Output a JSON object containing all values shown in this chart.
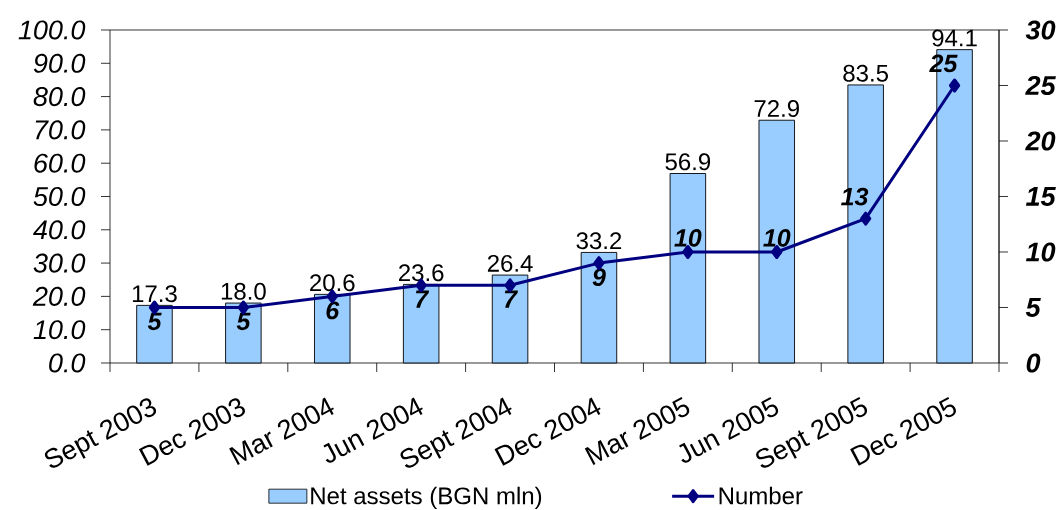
{
  "chart_data": {
    "type": "bar",
    "categories": [
      "Sept 2003",
      "Dec 2003",
      "Mar 2004",
      "Jun 2004",
      "Sept 2004",
      "Dec 2004",
      "Mar 2005",
      "Jun 2005",
      "Sept 2005",
      "Dec 2005"
    ],
    "series": [
      {
        "name": "Net assets (BGN mln)",
        "color": "#99ccff",
        "values": [
          17.3,
          18.0,
          20.6,
          23.6,
          26.4,
          33.2,
          56.9,
          72.9,
          83.5,
          94.1
        ],
        "value_labels": [
          "17.3",
          "18.0",
          "20.6",
          "23.6",
          "26.4",
          "33.2",
          "56.9",
          "72.9",
          "83.5",
          "94.1"
        ]
      },
      {
        "name": "Number",
        "type": "line",
        "axis": "y2",
        "color": "#000080",
        "marker": "diamond",
        "values": [
          5,
          5,
          6,
          7,
          7,
          9,
          10,
          10,
          13,
          25
        ],
        "value_labels": [
          "5",
          "5",
          "6",
          "7",
          "7",
          "9",
          "10",
          "10",
          "13",
          "25"
        ]
      }
    ],
    "ylim": [
      0,
      100
    ],
    "yticks": [
      {
        "value": 0,
        "label": "0.0"
      },
      {
        "value": 10,
        "label": "10.0"
      },
      {
        "value": 20,
        "label": "20.0"
      },
      {
        "value": 30,
        "label": "30.0"
      },
      {
        "value": 40,
        "label": "40.0"
      },
      {
        "value": 50,
        "label": "50.0"
      },
      {
        "value": 60,
        "label": "60.0"
      },
      {
        "value": 70,
        "label": "70.0"
      },
      {
        "value": 80,
        "label": "80.0"
      },
      {
        "value": 90,
        "label": "90.0"
      },
      {
        "value": 100,
        "label": "100.0"
      }
    ],
    "y2lim": [
      0,
      30
    ],
    "y2ticks": [
      0,
      5,
      10,
      15,
      20,
      25,
      30
    ],
    "legend": "bottom"
  }
}
